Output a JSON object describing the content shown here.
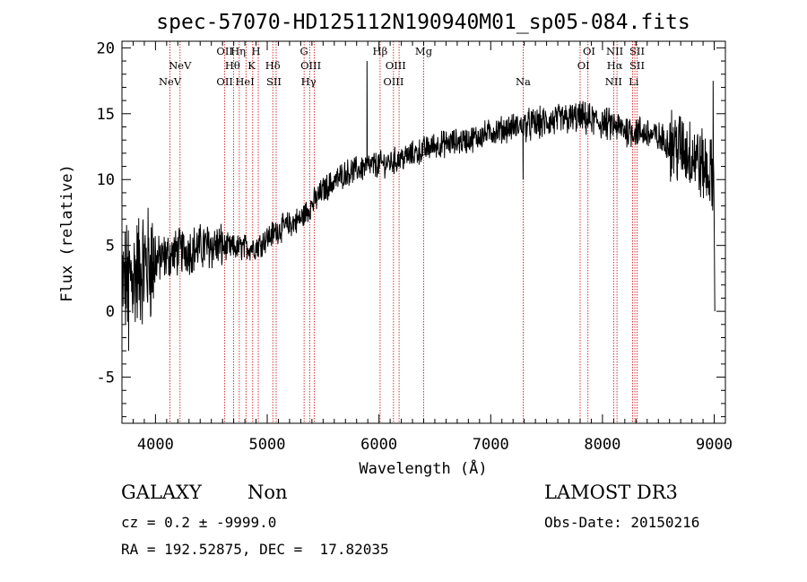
{
  "chart_data": {
    "type": "line",
    "title": "spec-57070-HD125112N190940M01_sp05-084.fits",
    "xlabel": "Wavelength (Å)",
    "ylabel": "Flux (relative)",
    "xlim": [
      3700,
      9100
    ],
    "ylim": [
      -8.5,
      20.5
    ],
    "x_ticks": [
      4000,
      5000,
      6000,
      7000,
      8000,
      9000
    ],
    "y_ticks": [
      -5,
      0,
      5,
      10,
      15,
      20
    ],
    "continuum_anchors": {
      "x": [
        3700,
        3900,
        4200,
        4500,
        4700,
        4900,
        5100,
        5300,
        5500,
        5700,
        5900,
        6100,
        6300,
        6500,
        6800,
        7000,
        7200,
        7400,
        7600,
        7800,
        8000,
        8200,
        8400,
        8600,
        8800,
        9000
      ],
      "y": [
        2.0,
        3.5,
        4.5,
        5.0,
        4.8,
        4.9,
        6.2,
        7.0,
        9.2,
        10.5,
        11.0,
        11.3,
        11.9,
        12.6,
        13.0,
        13.6,
        14.0,
        14.2,
        14.5,
        14.7,
        14.3,
        13.8,
        13.5,
        12.8,
        12.0,
        10.0
      ]
    },
    "features": [
      {
        "x": 5893,
        "y": 19.0
      },
      {
        "x": 7290,
        "y": 10.0
      },
      {
        "x": 8990,
        "y": 17.5
      },
      {
        "x": 9005,
        "y": 0.0
      },
      {
        "x": 3760,
        "y": -3.0
      }
    ],
    "spectral_lines": [
      {
        "name": "NeV",
        "x": 4130,
        "row": 3
      },
      {
        "name": "NeV",
        "x": 4220,
        "row": 2
      },
      {
        "name": "OII",
        "x": 4620,
        "row": 1
      },
      {
        "name": "OII",
        "x": 4620,
        "row": 3
      },
      {
        "name": "Hθ",
        "x": 4690,
        "row": 2
      },
      {
        "name": "Hη",
        "x": 4740,
        "row": 1
      },
      {
        "name": "HeI",
        "x": 4800,
        "row": 3
      },
      {
        "name": "K",
        "x": 4860,
        "row": 2
      },
      {
        "name": "H",
        "x": 4900,
        "row": 1
      },
      {
        "name": "Hδ",
        "x": 5050,
        "row": 2
      },
      {
        "name": "SII",
        "x": 5060,
        "row": 3
      },
      {
        "name": "G",
        "x": 5330,
        "row": 1
      },
      {
        "name": "OIII",
        "x": 5390,
        "row": 2
      },
      {
        "name": "Hγ",
        "x": 5370,
        "row": 3
      },
      {
        "name": "Hβ",
        "x": 6010,
        "row": 1
      },
      {
        "name": "OIII",
        "x": 6150,
        "row": 2
      },
      {
        "name": "OIII",
        "x": 6130,
        "row": 3
      },
      {
        "name": "Mg",
        "x": 6400,
        "row": 1
      },
      {
        "name": "Na",
        "x": 7290,
        "row": 3
      },
      {
        "name": "OI",
        "x": 7880,
        "row": 1
      },
      {
        "name": "OI",
        "x": 7830,
        "row": 2
      },
      {
        "name": "NII",
        "x": 8110,
        "row": 1
      },
      {
        "name": "Hα",
        "x": 8110,
        "row": 2
      },
      {
        "name": "NII",
        "x": 8100,
        "row": 3
      },
      {
        "name": "SII",
        "x": 8310,
        "row": 1
      },
      {
        "name": "SII",
        "x": 8310,
        "row": 2
      },
      {
        "name": "Li",
        "x": 8280,
        "row": 3
      }
    ],
    "marker_lines_x": [
      4130,
      4220,
      4620,
      4700,
      4750,
      4810,
      4870,
      4920,
      5050,
      5080,
      5330,
      5380,
      5420,
      6010,
      6130,
      6180,
      6400,
      7290,
      7800,
      7870,
      8100,
      8130,
      8270,
      8290,
      8310
    ]
  },
  "info": {
    "class": "GALAXY",
    "subclass": "Non",
    "survey": "LAMOST DR3",
    "cz": "cz = 0.2 ± -9999.0",
    "obs_date": "Obs-Date: 20150216",
    "radec": "RA = 192.52875, DEC =  17.82035"
  },
  "colors": {
    "spectrum": "#000000",
    "marker": "#cc0000",
    "axes": "#000000"
  }
}
